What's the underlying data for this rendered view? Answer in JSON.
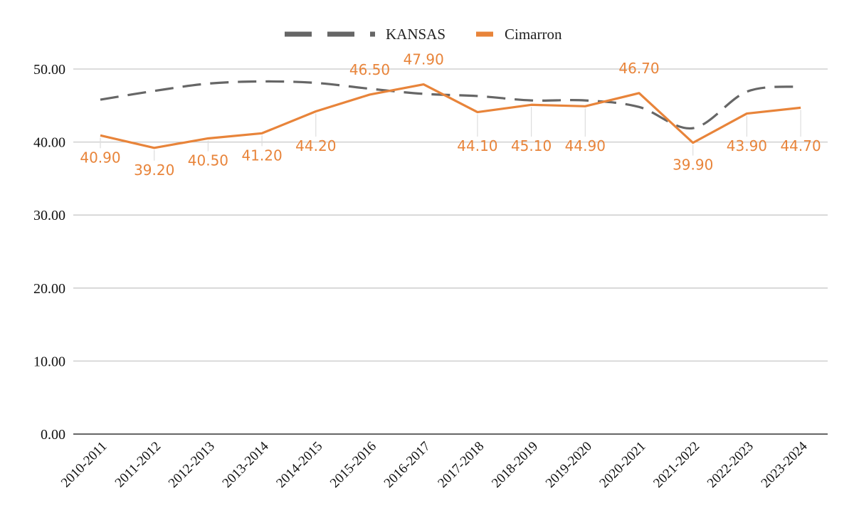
{
  "chart_data": {
    "type": "line",
    "title": "",
    "xlabel": "",
    "ylabel": "",
    "ylim": [
      0,
      50
    ],
    "yticks": [
      "0.00",
      "10.00",
      "20.00",
      "30.00",
      "40.00",
      "50.00"
    ],
    "grid": true,
    "legend_position": "top-center",
    "categories": [
      "2010-2011",
      "2011-2012",
      "2012-2013",
      "2013-2014",
      "2014-2015",
      "2015-2016",
      "2016-2017",
      "2017-2018",
      "2018-2019",
      "2019-2020",
      "2020-2021",
      "2021-2022",
      "2022-2023",
      "2023-2024"
    ],
    "series": [
      {
        "name": "KANSAS",
        "style": "dashed-smooth",
        "color": "#666666",
        "values": [
          45.8,
          47.0,
          48.0,
          48.3,
          48.1,
          47.3,
          46.6,
          46.3,
          45.7,
          45.7,
          44.8,
          41.9,
          46.9,
          47.6
        ]
      },
      {
        "name": "Cimarron",
        "style": "solid",
        "color": "#E8843A",
        "values": [
          40.9,
          39.2,
          40.5,
          41.2,
          44.2,
          46.5,
          47.9,
          44.1,
          45.1,
          44.9,
          46.7,
          39.9,
          43.9,
          44.7
        ],
        "labels": [
          "40.90",
          "39.20",
          "40.50",
          "41.20",
          "44.20",
          "46.50",
          "47.90",
          "44.10",
          "45.10",
          "44.90",
          "46.70",
          "39.90",
          "43.90",
          "44.70"
        ]
      }
    ]
  }
}
